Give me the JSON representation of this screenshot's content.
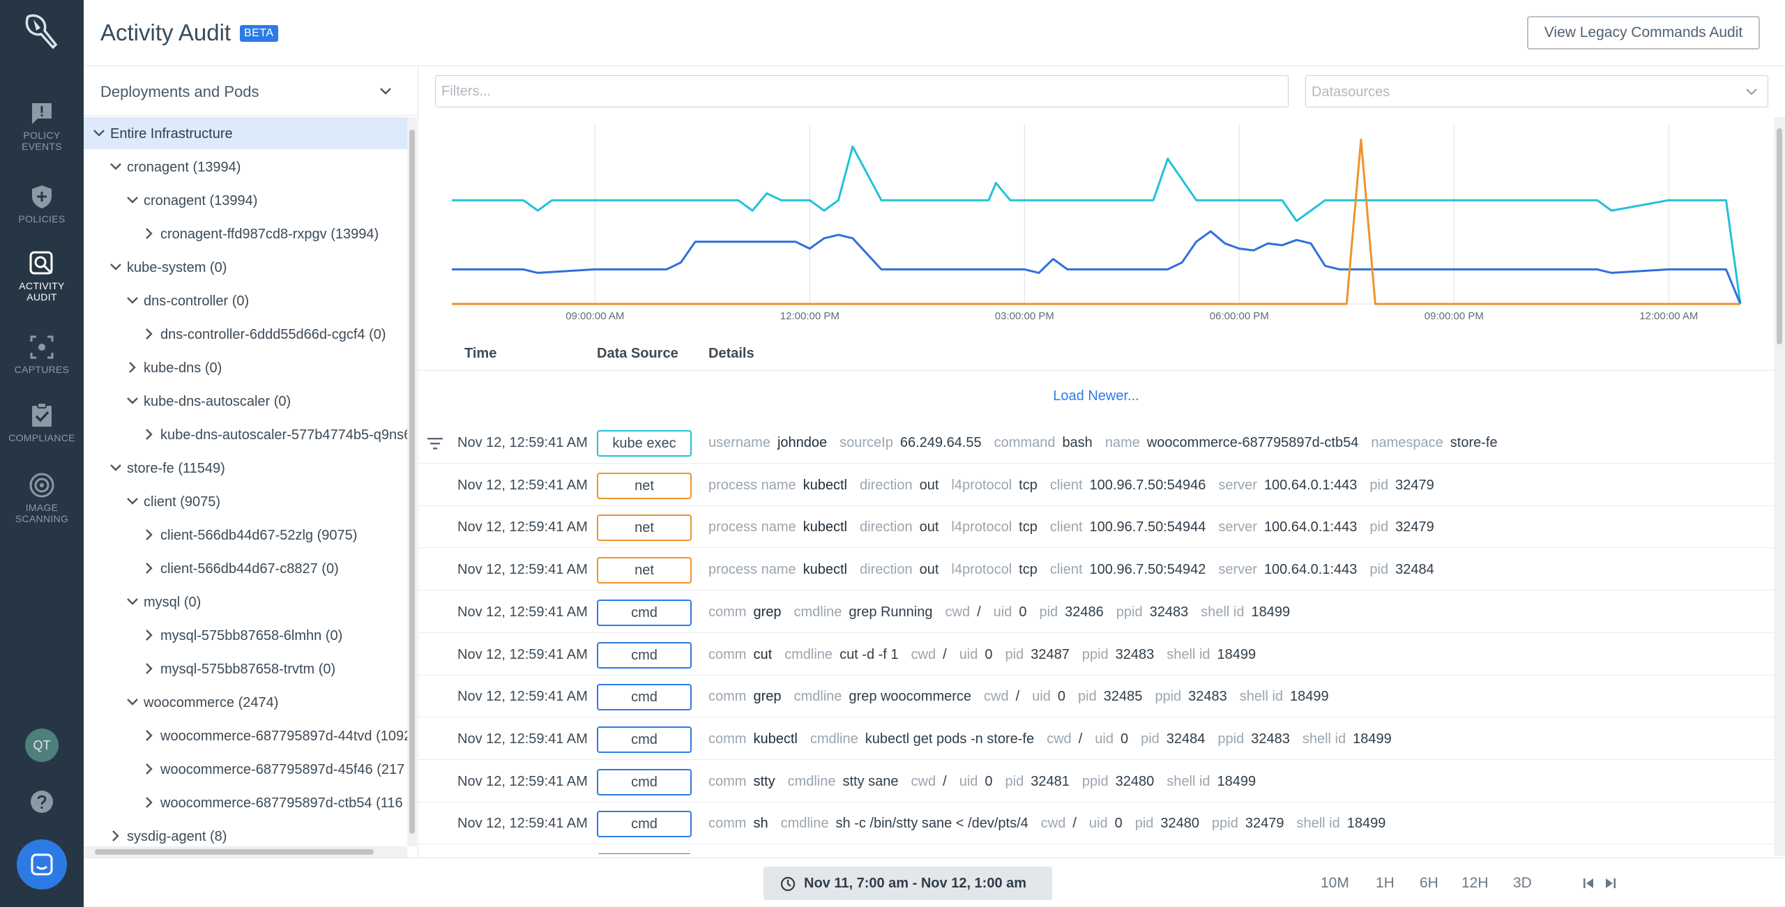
{
  "nav": {
    "items": [
      {
        "label": "POLICY\nEVENTS",
        "l1": "POLICY",
        "l2": "EVENTS",
        "icon": "alert-bubble-icon"
      },
      {
        "label": "POLICIES",
        "l1": "POLICIES",
        "l2": "",
        "icon": "shield-plus-icon"
      },
      {
        "label": "ACTIVITY AUDIT",
        "l1": "ACTIVITY",
        "l2": "AUDIT",
        "icon": "magnifier-icon"
      },
      {
        "label": "CAPTURES",
        "l1": "CAPTURES",
        "l2": "",
        "icon": "capture-icon"
      },
      {
        "label": "COMPLIANCE",
        "l1": "COMPLIANCE",
        "l2": "",
        "icon": "clipboard-check-icon"
      },
      {
        "label": "IMAGE SCANNING",
        "l1": "IMAGE",
        "l2": "SCANNING",
        "icon": "target-icon"
      }
    ],
    "avatar_initials": "QT"
  },
  "header": {
    "title": "Activity Audit",
    "badge": "BETA",
    "legacy_button": "View Legacy Commands Audit"
  },
  "tree": {
    "title": "Deployments and Pods",
    "rows": [
      {
        "label": "Entire Infrastructure",
        "indent": 0,
        "state": "open",
        "selected": true
      },
      {
        "label": "cronagent (13994)",
        "indent": 1,
        "state": "open"
      },
      {
        "label": "cronagent (13994)",
        "indent": 2,
        "state": "open"
      },
      {
        "label": "cronagent-ffd987cd8-rxpgv (13994)",
        "indent": 3,
        "state": "closed"
      },
      {
        "label": "kube-system (0)",
        "indent": 1,
        "state": "open"
      },
      {
        "label": "dns-controller (0)",
        "indent": 2,
        "state": "open"
      },
      {
        "label": "dns-controller-6ddd55d66d-cgcf4 (0)",
        "indent": 3,
        "state": "closed"
      },
      {
        "label": "kube-dns (0)",
        "indent": 2,
        "state": "closed"
      },
      {
        "label": "kube-dns-autoscaler (0)",
        "indent": 2,
        "state": "open"
      },
      {
        "label": "kube-dns-autoscaler-577b4774b5-q9ns6",
        "indent": 3,
        "state": "closed"
      },
      {
        "label": "store-fe (11549)",
        "indent": 1,
        "state": "open"
      },
      {
        "label": "client (9075)",
        "indent": 2,
        "state": "open"
      },
      {
        "label": "client-566db44d67-52zlg (9075)",
        "indent": 3,
        "state": "closed"
      },
      {
        "label": "client-566db44d67-c8827 (0)",
        "indent": 3,
        "state": "closed"
      },
      {
        "label": "mysql (0)",
        "indent": 2,
        "state": "open"
      },
      {
        "label": "mysql-575bb87658-6lmhn (0)",
        "indent": 3,
        "state": "closed"
      },
      {
        "label": "mysql-575bb87658-trvtm (0)",
        "indent": 3,
        "state": "closed"
      },
      {
        "label": "woocommerce (2474)",
        "indent": 2,
        "state": "open"
      },
      {
        "label": "woocommerce-687795897d-44tvd (1092",
        "indent": 3,
        "state": "closed"
      },
      {
        "label": "woocommerce-687795897d-45f46 (217",
        "indent": 3,
        "state": "closed"
      },
      {
        "label": "woocommerce-687795897d-ctb54 (116",
        "indent": 3,
        "state": "closed"
      },
      {
        "label": "sysdig-agent (8)",
        "indent": 1,
        "state": "closed"
      }
    ]
  },
  "filters": {
    "placeholder": "Filters...",
    "datasources_placeholder": "Datasources"
  },
  "chart_data": {
    "type": "line",
    "x_tick_labels": [
      "09:00:00 AM",
      "12:00:00 PM",
      "03:00:00 PM",
      "06:00:00 PM",
      "09:00:00 PM",
      "12:00:00 AM"
    ],
    "x_range_hours": [
      7,
      25
    ],
    "ylim": [
      0,
      100
    ],
    "grid": true,
    "series": [
      {
        "color": "#1fc2d8",
        "x": [
          7,
          8,
          8.2,
          8.4,
          11,
          11.2,
          11.4,
          11.6,
          11.8,
          12,
          12.2,
          12.4,
          12.6,
          13,
          13.2,
          13.4,
          14.5,
          14.6,
          14.8,
          15,
          15.2,
          15.6,
          15.8,
          16,
          16.2,
          16.4,
          16.6,
          16.8,
          17,
          17.4,
          17.6,
          17.8,
          18,
          18.4,
          18.6,
          18.8,
          19.2,
          19.6,
          19.8,
          20,
          21,
          23,
          23.2,
          24,
          24.2,
          24.8,
          25
        ],
        "y": [
          60,
          60,
          54,
          60,
          60,
          54,
          64,
          60,
          60,
          60,
          54,
          60,
          91,
          60,
          60,
          60,
          60,
          70,
          60,
          60,
          60,
          60,
          60,
          60,
          60,
          60,
          60,
          60,
          84,
          60,
          60,
          60,
          60,
          60,
          60,
          48,
          60,
          60,
          60,
          60,
          60,
          60,
          54,
          60,
          60,
          60,
          0
        ]
      },
      {
        "color": "#2f6fde",
        "x": [
          7,
          8,
          8.2,
          9,
          10,
          10.2,
          10.4,
          11.2,
          11.4,
          11.8,
          12,
          12.2,
          12.4,
          12.6,
          13,
          15,
          15.2,
          15.4,
          15.6,
          16,
          17,
          17.2,
          17.4,
          17.6,
          17.8,
          18,
          18.2,
          18.4,
          18.6,
          18.8,
          19,
          19.2,
          19.4,
          20,
          21,
          23,
          23.2,
          24,
          24.8,
          25
        ],
        "y": [
          20,
          20,
          18,
          20,
          20,
          24,
          36,
          36,
          36,
          36,
          32,
          38,
          40,
          38,
          20,
          20,
          18,
          26,
          20,
          20,
          20,
          24,
          36,
          42,
          35,
          32,
          31,
          35,
          34,
          37,
          35,
          22,
          20,
          20,
          20,
          20,
          18,
          20,
          20,
          0
        ]
      },
      {
        "color": "#f0932b",
        "x": [
          7,
          19.5,
          19.7,
          19.9,
          21,
          25
        ],
        "y": [
          0,
          0,
          95,
          0,
          0,
          0
        ]
      }
    ]
  },
  "table": {
    "col_time": "Time",
    "col_source": "Data Source",
    "col_details": "Details",
    "load_newer": "Load Newer...",
    "rows": [
      {
        "time": "Nov 12, 12:59:41 AM",
        "source": "kube exec",
        "kind": "kube",
        "details": [
          [
            "username",
            "johndoe"
          ],
          [
            "sourceIp",
            "66.249.64.55"
          ],
          [
            "command",
            "bash"
          ],
          [
            "name",
            "woocommerce-687795897d-ctb54"
          ],
          [
            "namespace",
            "store-fe"
          ]
        ]
      },
      {
        "time": "Nov 12, 12:59:41 AM",
        "source": "net",
        "kind": "net",
        "details": [
          [
            "process name",
            "kubectl"
          ],
          [
            "direction",
            "out"
          ],
          [
            "l4protocol",
            "tcp"
          ],
          [
            "client",
            "100.96.7.50:54946"
          ],
          [
            "server",
            "100.64.0.1:443"
          ],
          [
            "pid",
            "32479"
          ]
        ]
      },
      {
        "time": "Nov 12, 12:59:41 AM",
        "source": "net",
        "kind": "net",
        "details": [
          [
            "process name",
            "kubectl"
          ],
          [
            "direction",
            "out"
          ],
          [
            "l4protocol",
            "tcp"
          ],
          [
            "client",
            "100.96.7.50:54944"
          ],
          [
            "server",
            "100.64.0.1:443"
          ],
          [
            "pid",
            "32479"
          ]
        ]
      },
      {
        "time": "Nov 12, 12:59:41 AM",
        "source": "net",
        "kind": "net",
        "details": [
          [
            "process name",
            "kubectl"
          ],
          [
            "direction",
            "out"
          ],
          [
            "l4protocol",
            "tcp"
          ],
          [
            "client",
            "100.96.7.50:54942"
          ],
          [
            "server",
            "100.64.0.1:443"
          ],
          [
            "pid",
            "32484"
          ]
        ]
      },
      {
        "time": "Nov 12, 12:59:41 AM",
        "source": "cmd",
        "kind": "cmd",
        "details": [
          [
            "comm",
            "grep"
          ],
          [
            "cmdline",
            "grep Running"
          ],
          [
            "cwd",
            "/"
          ],
          [
            "uid",
            "0"
          ],
          [
            "pid",
            "32486"
          ],
          [
            "ppid",
            "32483"
          ],
          [
            "shell id",
            "18499"
          ]
        ]
      },
      {
        "time": "Nov 12, 12:59:41 AM",
        "source": "cmd",
        "kind": "cmd",
        "details": [
          [
            "comm",
            "cut"
          ],
          [
            "cmdline",
            "cut -d -f 1"
          ],
          [
            "cwd",
            "/"
          ],
          [
            "uid",
            "0"
          ],
          [
            "pid",
            "32487"
          ],
          [
            "ppid",
            "32483"
          ],
          [
            "shell id",
            "18499"
          ]
        ]
      },
      {
        "time": "Nov 12, 12:59:41 AM",
        "source": "cmd",
        "kind": "cmd",
        "details": [
          [
            "comm",
            "grep"
          ],
          [
            "cmdline",
            "grep woocommerce"
          ],
          [
            "cwd",
            "/"
          ],
          [
            "uid",
            "0"
          ],
          [
            "pid",
            "32485"
          ],
          [
            "ppid",
            "32483"
          ],
          [
            "shell id",
            "18499"
          ]
        ]
      },
      {
        "time": "Nov 12, 12:59:41 AM",
        "source": "cmd",
        "kind": "cmd",
        "details": [
          [
            "comm",
            "kubectl"
          ],
          [
            "cmdline",
            "kubectl get pods -n store-fe"
          ],
          [
            "cwd",
            "/"
          ],
          [
            "uid",
            "0"
          ],
          [
            "pid",
            "32484"
          ],
          [
            "ppid",
            "32483"
          ],
          [
            "shell id",
            "18499"
          ]
        ]
      },
      {
        "time": "Nov 12, 12:59:41 AM",
        "source": "cmd",
        "kind": "cmd",
        "details": [
          [
            "comm",
            "stty"
          ],
          [
            "cmdline",
            "stty sane"
          ],
          [
            "cwd",
            "/"
          ],
          [
            "uid",
            "0"
          ],
          [
            "pid",
            "32481"
          ],
          [
            "ppid",
            "32480"
          ],
          [
            "shell id",
            "18499"
          ]
        ]
      },
      {
        "time": "Nov 12, 12:59:41 AM",
        "source": "cmd",
        "kind": "cmd",
        "details": [
          [
            "comm",
            "sh"
          ],
          [
            "cmdline",
            "sh -c /bin/stty sane < /dev/pts/4"
          ],
          [
            "cwd",
            "/"
          ],
          [
            "uid",
            "0"
          ],
          [
            "pid",
            "32480"
          ],
          [
            "ppid",
            "32479"
          ],
          [
            "shell id",
            "18499"
          ]
        ]
      },
      {
        "time": "",
        "source": "",
        "kind": "cmd",
        "details": []
      }
    ]
  },
  "footer": {
    "range": "Nov 11, 7:00 am - Nov 12, 1:00 am",
    "zooms": [
      "10M",
      "1H",
      "6H",
      "12H",
      "3D"
    ]
  }
}
